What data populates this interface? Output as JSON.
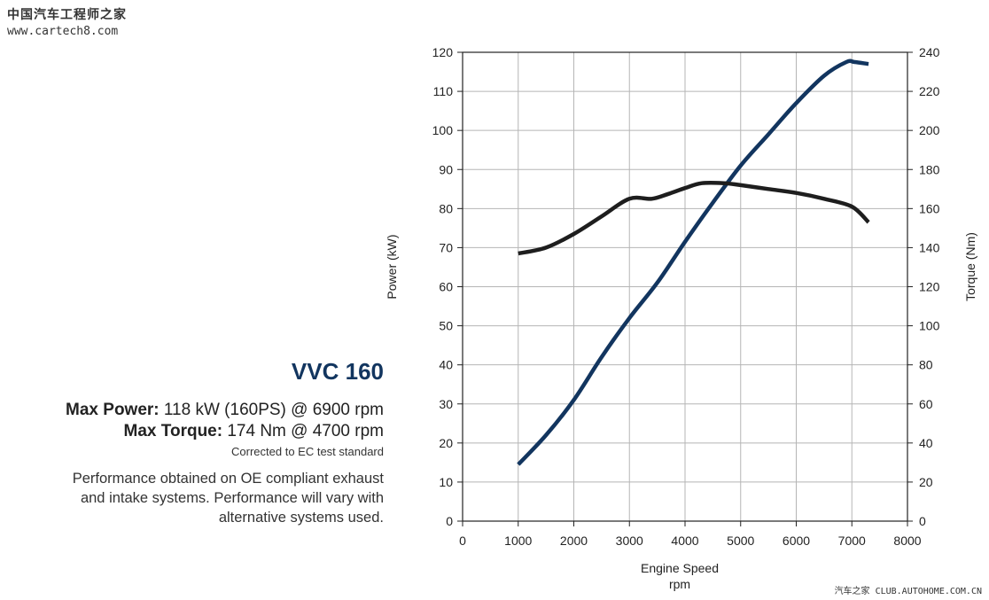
{
  "watermark": {
    "site_name": "中国汽车工程师之家",
    "site_url": "www.cartech8.com",
    "footer": "汽车之家 CLUB.AUTOHOME.COM.CN"
  },
  "info": {
    "model": "VVC 160",
    "max_power_label": "Max Power:",
    "max_power_value": " 118 kW (160PS) @ 6900 rpm",
    "max_torque_label": "Max Torque:",
    "max_torque_value": " 174 Nm @ 4700 rpm",
    "correction_note": "Corrected to EC test standard",
    "performance_note": "Performance obtained on OE compliant exhaust and intake systems. Performance will vary with alternative systems used."
  },
  "colors": {
    "power": "#12355f",
    "torque": "#1e1e1e",
    "grid": "#b5b5b5",
    "title": "#12355f"
  },
  "chart_data": {
    "type": "line",
    "xlabel": "Engine Speed",
    "xunit": "rpm",
    "ylabel_left": "Power (kW)",
    "ylabel_right": "Torque (Nm)",
    "xlim": [
      0,
      8000
    ],
    "ylim_left": [
      0,
      120
    ],
    "ylim_right": [
      0,
      240
    ],
    "x_ticks": [
      0,
      1000,
      2000,
      3000,
      4000,
      5000,
      6000,
      7000,
      8000
    ],
    "y_ticks_left": [
      0,
      10,
      20,
      30,
      40,
      50,
      60,
      70,
      80,
      90,
      100,
      110,
      120
    ],
    "y_ticks_right": [
      0,
      20,
      40,
      60,
      80,
      100,
      120,
      140,
      160,
      180,
      200,
      220,
      240
    ],
    "grid": true,
    "series": [
      {
        "name": "Power",
        "axis": "left",
        "x": [
          1000,
          1500,
          2000,
          2500,
          3000,
          3500,
          4000,
          4500,
          5000,
          5500,
          6000,
          6500,
          6900,
          7050,
          7300
        ],
        "values": [
          14.5,
          22,
          31,
          42,
          52,
          61,
          71.5,
          81.5,
          91,
          99,
          107,
          114,
          117.5,
          117.5,
          117
        ]
      },
      {
        "name": "Torque",
        "axis": "right",
        "x": [
          1000,
          1500,
          2000,
          2500,
          3000,
          3400,
          3700,
          4000,
          4300,
          4700,
          5000,
          5500,
          6000,
          6500,
          7000,
          7300
        ],
        "values": [
          137,
          140,
          147,
          156,
          165,
          165,
          167.5,
          170.5,
          173,
          173,
          172,
          170,
          168,
          165,
          161,
          153
        ]
      }
    ]
  }
}
